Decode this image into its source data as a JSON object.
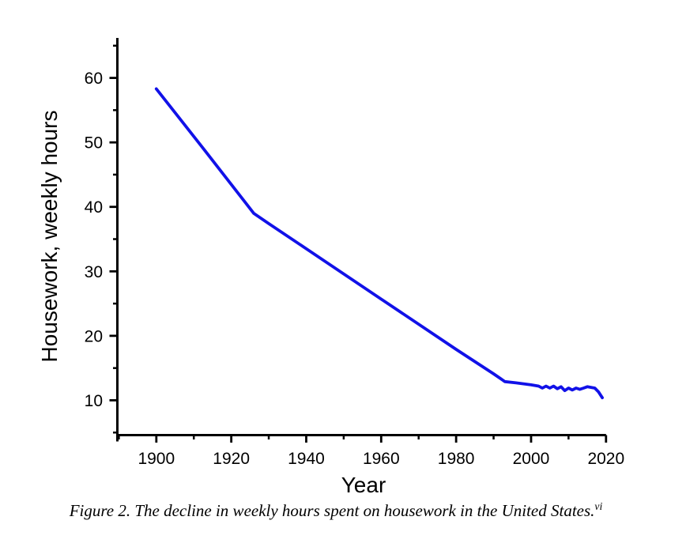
{
  "page": {
    "background_color": "#ffffff",
    "text_color": "#000000"
  },
  "chart_data": {
    "type": "line",
    "title": "",
    "xlabel": "Year",
    "ylabel": "Housework, weekly hours",
    "xlim": [
      1889.6,
      2020
    ],
    "ylim": [
      4.6,
      66.2
    ],
    "x_major_ticks": [
      1900,
      1920,
      1940,
      1960,
      1980,
      2000,
      2020
    ],
    "x_minor_ticks": [
      1890,
      1910,
      1930,
      1950,
      1970,
      1990,
      2010
    ],
    "y_major_ticks": [
      10,
      20,
      30,
      40,
      50,
      60
    ],
    "y_minor_ticks": [
      5,
      15,
      25,
      35,
      45,
      55,
      65
    ],
    "grid": false,
    "legend_position": "none",
    "axis_color": "#000000",
    "series": [
      {
        "name": "Housework weekly hours (United States)",
        "color": "#1111e8",
        "x": [
          1900,
          1913,
          1926,
          1930,
          1940,
          1950,
          1960,
          1970,
          1980,
          1990,
          1993,
          1996,
          2000,
          2002,
          2003,
          2004,
          2005,
          2006,
          2007,
          2008,
          2009,
          2010,
          2011,
          2012,
          2013,
          2014,
          2015,
          2016,
          2017,
          2018,
          2019
        ],
        "y": [
          58.3,
          48.7,
          39.0,
          37.4,
          33.5,
          29.6,
          25.7,
          21.8,
          17.9,
          14.1,
          12.9,
          12.7,
          12.4,
          12.2,
          11.9,
          12.2,
          11.9,
          12.2,
          11.8,
          12.1,
          11.5,
          11.9,
          11.6,
          11.9,
          11.7,
          11.9,
          12.1,
          12.0,
          11.9,
          11.3,
          10.4
        ]
      }
    ]
  },
  "caption": {
    "text": "Figure 2. The decline in weekly hours spent on housework in the United States.",
    "superscript": "vi"
  }
}
